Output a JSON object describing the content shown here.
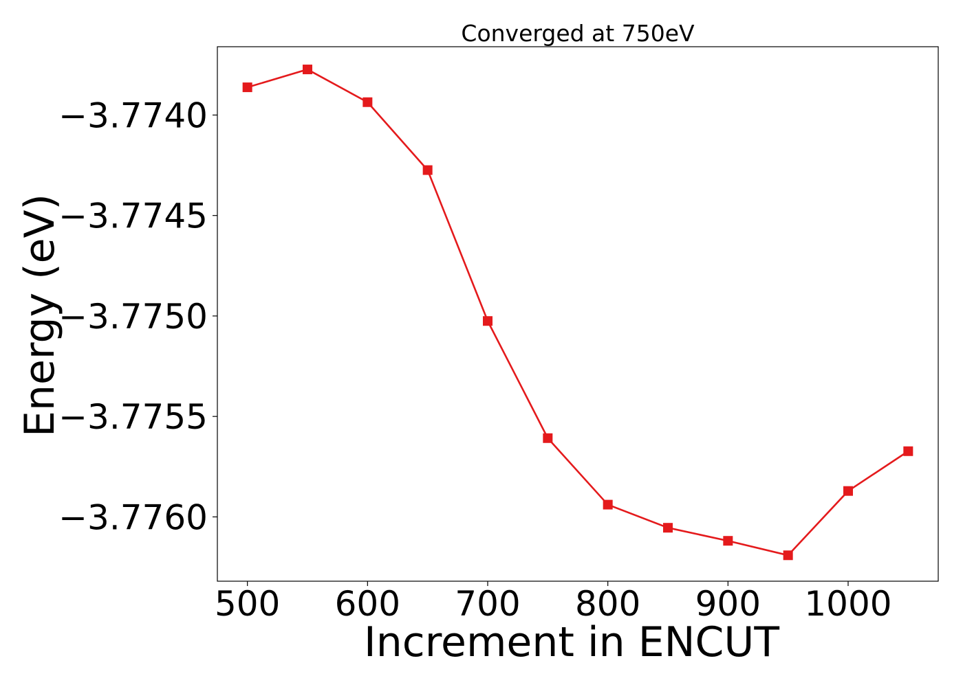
{
  "chart_data": {
    "type": "line",
    "title": "Converged at 750eV",
    "xlabel": "Increment in ENCUT",
    "ylabel": "Energy (eV)",
    "xlim": [
      475,
      1075
    ],
    "ylim": [
      -3.77632,
      -3.77366
    ],
    "x_ticks": [
      500,
      600,
      700,
      800,
      900,
      1000
    ],
    "y_ticks": [
      -3.774,
      -3.7745,
      -3.775,
      -3.7755,
      -3.776
    ],
    "x_tick_labels": [
      "500",
      "600",
      "700",
      "800",
      "900",
      "1000"
    ],
    "y_tick_labels": [
      "−3.7740",
      "−3.7745",
      "−3.7750",
      "−3.7755",
      "−3.7760"
    ],
    "grid": false,
    "legend": "none",
    "series": [
      {
        "color": "#e41a1c",
        "marker": "square",
        "x": [
          500,
          550,
          600,
          650,
          700,
          750,
          800,
          850,
          900,
          950,
          1000,
          1050
        ],
        "y": [
          -3.773862,
          -3.773773,
          -3.773936,
          -3.774274,
          -3.775025,
          -3.775608,
          -3.775939,
          -3.776054,
          -3.776119,
          -3.776191,
          -3.775871,
          -3.775673
        ]
      }
    ]
  }
}
